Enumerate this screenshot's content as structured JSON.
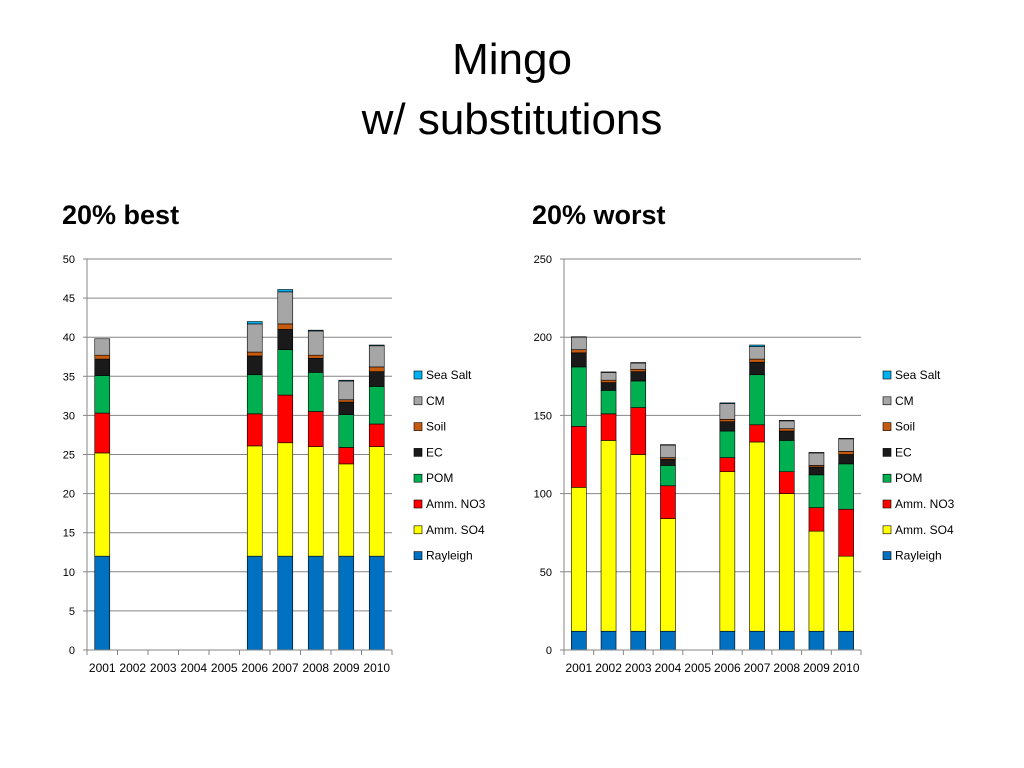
{
  "slide": {
    "title_line1": "Mingo",
    "title_line2": "w/ substitutions"
  },
  "colors": {
    "Rayleigh": "#0070c0",
    "Amm. SO4": "#ffff00",
    "Amm. NO3": "#ff0000",
    "POM": "#00b050",
    "EC": "#1a1a1a",
    "Soil": "#c55a11",
    "CM": "#a6a6a6",
    "Sea Salt": "#00b0f0"
  },
  "chart_data": [
    {
      "type": "bar",
      "stacked": true,
      "title": "20% best",
      "categories": [
        "2001",
        "2002",
        "2003",
        "2004",
        "2005",
        "2006",
        "2007",
        "2008",
        "2009",
        "2010"
      ],
      "ylim": [
        0,
        50
      ],
      "yticks": [
        0,
        5,
        10,
        15,
        20,
        25,
        30,
        35,
        40,
        45,
        50
      ],
      "grid": true,
      "legend_order": [
        "Sea Salt",
        "CM",
        "Soil",
        "EC",
        "POM",
        "Amm. NO3",
        "Amm. SO4",
        "Rayleigh"
      ],
      "series": [
        {
          "name": "Rayleigh",
          "values": [
            12,
            0,
            0,
            0,
            0,
            12,
            12,
            12,
            12,
            12
          ]
        },
        {
          "name": "Amm. SO4",
          "values": [
            13.2,
            0,
            0,
            0,
            0,
            14.1,
            14.5,
            14,
            11.8,
            14
          ]
        },
        {
          "name": "Amm. NO3",
          "values": [
            5.1,
            0,
            0,
            0,
            0,
            4.1,
            6.1,
            4.5,
            2.1,
            2.9
          ]
        },
        {
          "name": "POM",
          "values": [
            4.8,
            0,
            0,
            0,
            0,
            5,
            5.8,
            5,
            4.2,
            4.8
          ]
        },
        {
          "name": "EC",
          "values": [
            2.1,
            0,
            0,
            0,
            0,
            2.4,
            2.6,
            1.8,
            1.6,
            1.9
          ]
        },
        {
          "name": "Soil",
          "values": [
            0.5,
            0,
            0,
            0,
            0,
            0.5,
            0.7,
            0.4,
            0.3,
            0.6
          ]
        },
        {
          "name": "CM",
          "values": [
            2.1,
            0,
            0,
            0,
            0,
            3.6,
            4.1,
            3.1,
            2.4,
            2.7
          ]
        },
        {
          "name": "Sea Salt",
          "values": [
            0,
            0,
            0,
            0,
            0,
            0.3,
            0.3,
            0.1,
            0.1,
            0.1
          ]
        }
      ]
    },
    {
      "type": "bar",
      "stacked": true,
      "title": "20% worst",
      "categories": [
        "2001",
        "2002",
        "2003",
        "2004",
        "2005",
        "2006",
        "2007",
        "2008",
        "2009",
        "2010"
      ],
      "ylim": [
        0,
        250
      ],
      "yticks": [
        0,
        50,
        100,
        150,
        200,
        250
      ],
      "grid": true,
      "legend_order": [
        "Sea Salt",
        "CM",
        "Soil",
        "EC",
        "POM",
        "Amm. NO3",
        "Amm. SO4",
        "Rayleigh"
      ],
      "series": [
        {
          "name": "Rayleigh",
          "values": [
            12,
            12,
            12,
            12,
            0,
            12,
            12,
            12,
            12,
            12
          ]
        },
        {
          "name": "Amm. SO4",
          "values": [
            92,
            122,
            113,
            72,
            0,
            102,
            121,
            88,
            64,
            48
          ]
        },
        {
          "name": "Amm. NO3",
          "values": [
            39,
            17,
            30,
            21,
            0,
            9,
            11,
            14,
            15,
            30
          ]
        },
        {
          "name": "POM",
          "values": [
            38,
            15,
            17,
            13,
            0,
            17,
            32,
            20,
            21,
            29
          ]
        },
        {
          "name": "EC",
          "values": [
            9,
            5,
            6,
            4,
            0,
            6,
            8,
            6,
            5,
            6
          ]
        },
        {
          "name": "Soil",
          "values": [
            2,
            1.5,
            1.5,
            1,
            0,
            1.5,
            2,
            1.5,
            1,
            2
          ]
        },
        {
          "name": "CM",
          "values": [
            8,
            5,
            4,
            8,
            0,
            10,
            8,
            5,
            8,
            8
          ]
        },
        {
          "name": "Sea Salt",
          "values": [
            0.3,
            0.3,
            0.3,
            0.3,
            0,
            0.5,
            1,
            0.3,
            0.3,
            0.3
          ]
        }
      ]
    }
  ]
}
